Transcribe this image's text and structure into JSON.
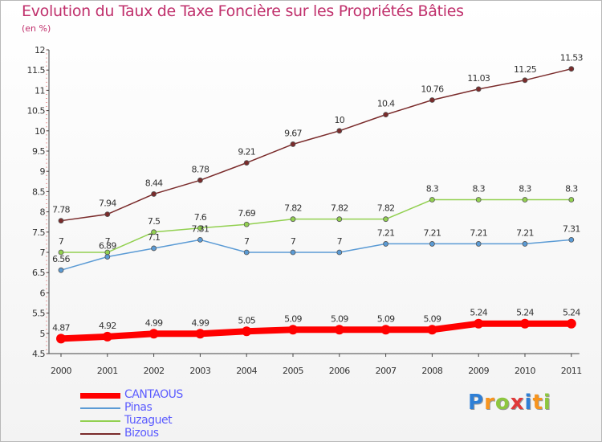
{
  "title": "Evolution du Taux de Taxe Foncière sur les Propriétés Bâties",
  "subtitle": "(en %)",
  "chart_data": {
    "type": "line",
    "categories": [
      "2000",
      "2001",
      "2002",
      "2003",
      "2004",
      "2005",
      "2006",
      "2007",
      "2008",
      "2009",
      "2010",
      "2011"
    ],
    "ylim": [
      4.5,
      12
    ],
    "yticks": [
      "4.5",
      "5",
      "5.5",
      "6",
      "6.5",
      "7",
      "7.5",
      "8",
      "8.5",
      "9",
      "9.5",
      "10",
      "10.5",
      "11",
      "11.5",
      "12"
    ],
    "grid": false,
    "legend_position": "bottom-left",
    "series": [
      {
        "name": "CANTAOUS",
        "color": "#ff0000",
        "values": [
          4.87,
          4.92,
          4.99,
          4.99,
          5.05,
          5.09,
          5.09,
          5.09,
          5.09,
          5.24,
          5.24,
          5.24
        ],
        "labels": [
          "4.87",
          "4.92",
          "4.99",
          "4.99",
          "5.05",
          "5.09",
          "5.09",
          "5.09",
          "5.09",
          "5.24",
          "5.24",
          "5.24"
        ]
      },
      {
        "name": "Pinas",
        "color": "#5b9bd5",
        "values": [
          6.56,
          6.89,
          7.1,
          7.31,
          7,
          7,
          7,
          7.21,
          7.21,
          7.21,
          7.21,
          7.31
        ],
        "labels": [
          "6.56",
          "6.89",
          "7.1",
          "7.31",
          "7",
          "7",
          "7",
          "7.21",
          "7.21",
          "7.21",
          "7.21",
          "7.31"
        ]
      },
      {
        "name": "Tuzaguet",
        "color": "#92d050",
        "values": [
          7,
          7,
          7.5,
          7.6,
          7.69,
          7.82,
          7.82,
          7.82,
          8.3,
          8.3,
          8.3,
          8.3
        ],
        "labels": [
          "7",
          "7",
          "7.5",
          "7.6",
          "7.69",
          "7.82",
          "7.82",
          "7.82",
          "8.3",
          "8.3",
          "8.3",
          "8.3"
        ]
      },
      {
        "name": "Bizous",
        "color": "#7a2b2b",
        "values": [
          7.78,
          7.94,
          8.44,
          8.78,
          9.21,
          9.67,
          10,
          10.4,
          10.76,
          11.03,
          11.25,
          11.53
        ],
        "labels": [
          "7.78",
          "7.94",
          "8.44",
          "8.78",
          "9.21",
          "9.67",
          "10",
          "10.4",
          "10.76",
          "11.03",
          "11.25",
          "11.53"
        ]
      }
    ]
  },
  "logo": {
    "letters": [
      "P",
      "r",
      "o",
      "x",
      "i",
      "t",
      "i"
    ],
    "colors": [
      "#2e7fd6",
      "#f7941d",
      "#8dc63f",
      "#e03a3a",
      "#2e7fd6",
      "#f7941d",
      "#8dc63f"
    ]
  }
}
